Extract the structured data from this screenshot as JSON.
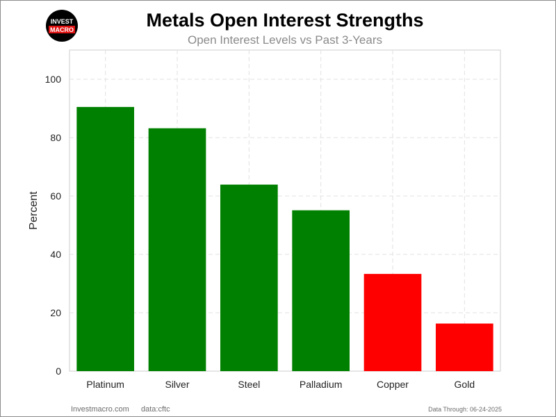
{
  "logo": {
    "line1": "INVEST",
    "line2": "MACRO",
    "bg_color": "#000000",
    "accent_color": "#e01010"
  },
  "footer": {
    "site": "Investmacro.com",
    "source": "data:cftc",
    "through": "Data Through: 06-24-2025"
  },
  "chart_data": {
    "type": "bar",
    "title": "Metals Open Interest Strengths",
    "subtitle": "Open Interest Levels vs Past 3-Years",
    "xlabel": "",
    "ylabel": "Percent",
    "categories": [
      "Platinum",
      "Silver",
      "Steel",
      "Palladium",
      "Copper",
      "Gold"
    ],
    "values": [
      90.5,
      83.2,
      63.9,
      55.1,
      33.3,
      16.3
    ],
    "colors": [
      "#008000",
      "#008000",
      "#008000",
      "#008000",
      "#ff0000",
      "#ff0000"
    ],
    "ylim": [
      0,
      110
    ],
    "yticks": [
      "0",
      "20",
      "40",
      "60",
      "80",
      "100"
    ],
    "grid": true,
    "legend": "none"
  }
}
